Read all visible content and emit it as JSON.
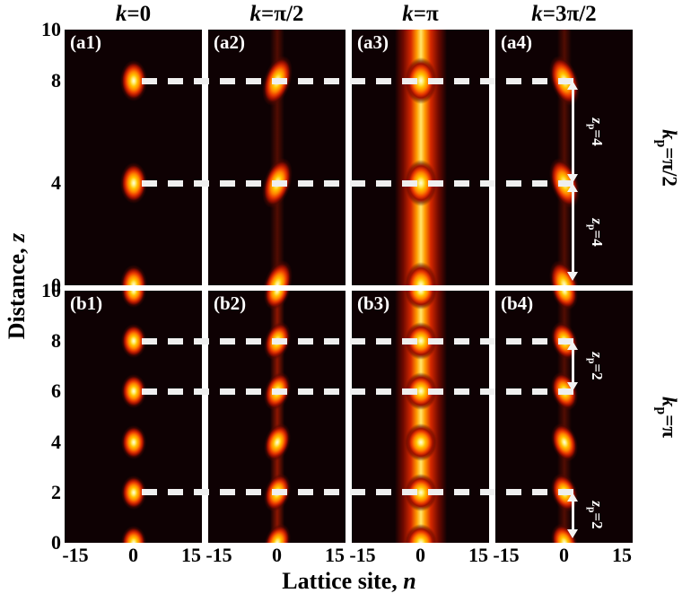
{
  "chart_data": {
    "type": "heatmap",
    "colormap": "hot",
    "description": "2x4 grid of beam-propagation intensity maps |psi(n,z)|^2 in a lattice; columns = Bloch momentum k, rows = pump momentum k_p; bright spots mark periodic revivals of a localized state at lattice site n=0",
    "axes": {
      "xlabel_prefix": "Lattice site, ",
      "xlabel_var": "n",
      "ylabel_prefix": "Distance, ",
      "ylabel_var": "z",
      "x_range": [
        -15,
        15
      ],
      "y_range": [
        0,
        10
      ],
      "x_ticks": [
        "-15",
        "0",
        "15"
      ],
      "y_ticks_top": [
        {
          "z": 10,
          "label": "10"
        },
        {
          "z": 8,
          "label": "8"
        },
        {
          "z": 4,
          "label": "4"
        },
        {
          "z": 0,
          "label": "0"
        }
      ],
      "y_ticks_bottom": [
        {
          "z": 10,
          "label": "10"
        },
        {
          "z": 8,
          "label": "8"
        },
        {
          "z": 6,
          "label": "6"
        },
        {
          "z": 4,
          "label": "4"
        },
        {
          "z": 2,
          "label": "2"
        },
        {
          "z": 0,
          "label": "0"
        }
      ]
    },
    "column_titles": [
      {
        "var": "k",
        "rest": "=0"
      },
      {
        "var": "k",
        "rest": "=π/2"
      },
      {
        "var": "k",
        "rest": "=π"
      },
      {
        "var": "k",
        "rest": "=3π/2"
      }
    ],
    "row_labels": [
      {
        "var": "k",
        "sub": "p",
        "rest": "=π/2"
      },
      {
        "var": "k",
        "sub": "p",
        "rest": "=π"
      }
    ],
    "rows": [
      {
        "k_p": "π/2",
        "revival_period_z": 4
      },
      {
        "k_p": "π",
        "revival_period_z": 2
      }
    ],
    "panels": [
      {
        "label": "(a1)",
        "row": 0,
        "col": 0,
        "k": "0",
        "pattern": "blobs",
        "spots_z": [
          0,
          4,
          8
        ],
        "center_n": 0,
        "tilt": 0,
        "trail": "none"
      },
      {
        "label": "(a2)",
        "row": 0,
        "col": 1,
        "k": "π/2",
        "pattern": "blobs",
        "spots_z": [
          0,
          4,
          8
        ],
        "center_n": 0,
        "tilt": 18,
        "trail": "faint"
      },
      {
        "label": "(a3)",
        "row": 0,
        "col": 2,
        "k": "π",
        "pattern": "stripe",
        "spots_z": [
          0,
          4,
          8
        ],
        "center_n": 0,
        "tilt": 0,
        "trail": "none"
      },
      {
        "label": "(a4)",
        "row": 0,
        "col": 3,
        "k": "3π/2",
        "pattern": "blobs",
        "spots_z": [
          0,
          4,
          8
        ],
        "center_n": 0,
        "tilt": -18,
        "trail": "faint"
      },
      {
        "label": "(b1)",
        "row": 1,
        "col": 0,
        "k": "0",
        "pattern": "blobs",
        "spots_z": [
          0,
          2,
          4,
          6,
          8,
          10
        ],
        "center_n": 0,
        "tilt": 0,
        "trail": "none"
      },
      {
        "label": "(b2)",
        "row": 1,
        "col": 1,
        "k": "π/2",
        "pattern": "blobs",
        "spots_z": [
          0,
          2,
          4,
          6,
          8,
          10
        ],
        "center_n": 0,
        "tilt": 18,
        "trail": "strong"
      },
      {
        "label": "(b3)",
        "row": 1,
        "col": 2,
        "k": "π",
        "pattern": "stripe",
        "spots_z": [
          0,
          2,
          4,
          6,
          8,
          10
        ],
        "center_n": 0,
        "tilt": 0,
        "trail": "none"
      },
      {
        "label": "(b4)",
        "row": 1,
        "col": 3,
        "k": "3π/2",
        "pattern": "blobs",
        "spots_z": [
          0,
          2,
          4,
          6,
          8,
          10
        ],
        "center_n": 0,
        "tilt": -18,
        "trail": "faint"
      }
    ],
    "dashed_lines": [
      {
        "row": 0,
        "z": 8
      },
      {
        "row": 0,
        "z": 4
      },
      {
        "row": 1,
        "z": 8
      },
      {
        "row": 1,
        "z": 6
      },
      {
        "row": 1,
        "z": 2
      }
    ],
    "arrows": [
      {
        "row": 0,
        "z_from": 8,
        "z_to": 4,
        "label": {
          "var": "z",
          "sub": "p",
          "rest": "=4"
        }
      },
      {
        "row": 0,
        "z_from": 4,
        "z_to": 0,
        "label": {
          "var": "z",
          "sub": "p",
          "rest": "=4"
        }
      },
      {
        "row": 1,
        "z_from": 8,
        "z_to": 6,
        "label": {
          "var": "z",
          "sub": "p",
          "rest": "=2"
        }
      },
      {
        "row": 1,
        "z_from": 2,
        "z_to": 0,
        "label": {
          "var": "z",
          "sub": "p",
          "rest": "=2"
        }
      }
    ],
    "colors": {
      "background": "#ffffff",
      "panel_background": "#0e0103",
      "hot_core": "#fffbe0",
      "hot_mid": "#ff9a00",
      "hot_outer": "#c41800",
      "dashed_line": "#efefef",
      "arrow": "#f3f3f3",
      "panel_label": "#ffffff",
      "text": "#000000"
    }
  }
}
